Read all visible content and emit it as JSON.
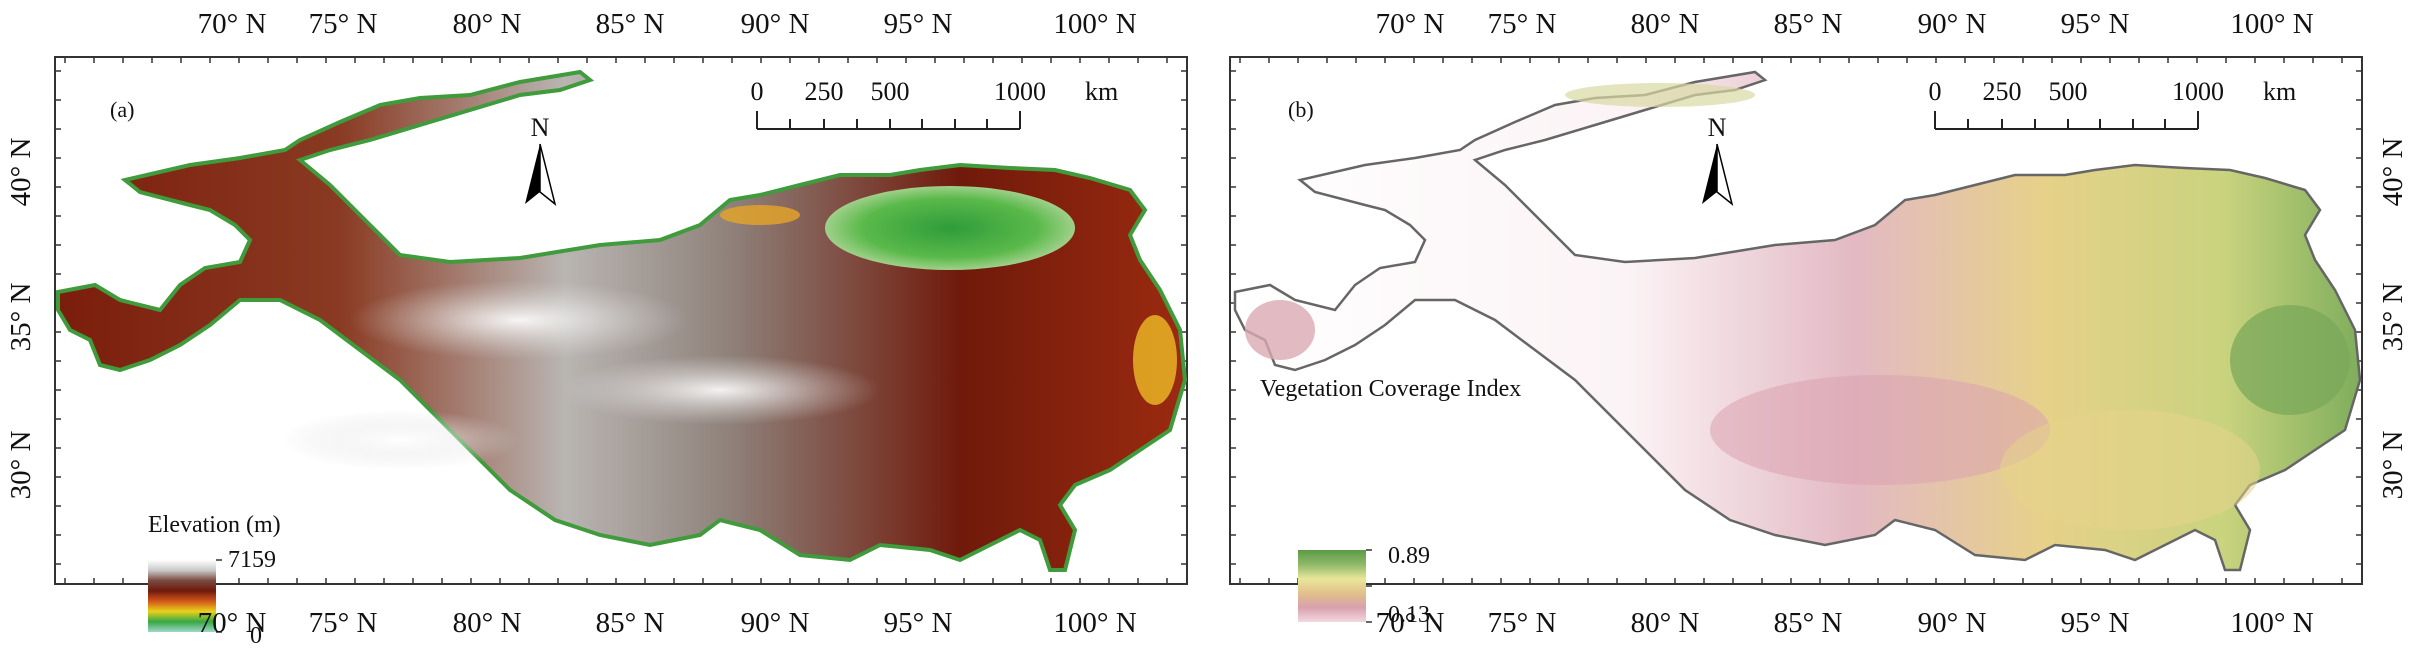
{
  "longitude_labels": [
    "70° N",
    "75° N",
    "80° N",
    "85° N",
    "90° N",
    "95° N",
    "100° N"
  ],
  "latitude_labels": [
    "40° N",
    "35° N",
    "30° N"
  ],
  "scale_bar": {
    "ticks": [
      "0",
      "250",
      "500",
      "1000"
    ],
    "unit": "km"
  },
  "north_arrow": {
    "label": "N",
    "icon": "north-arrow-icon"
  },
  "panels": [
    {
      "id": "a",
      "tag": "(a)",
      "legend": {
        "title": "Elevation (m)",
        "max_label": "7159",
        "min_label": "0",
        "colors": [
          "#9fd6c8",
          "#35a844",
          "#e8d21a",
          "#d2561a",
          "#6e1a0c",
          "#7a4a40",
          "#c9c9c9",
          "#ffffff"
        ]
      }
    },
    {
      "id": "b",
      "tag": "(b)",
      "legend": {
        "title": "Vegetation Coverage Index",
        "max_label": "0.89",
        "min_label": "0.13",
        "colors": [
          "#f3d9e1",
          "#d9a0ae",
          "#e2c08a",
          "#e8e79a",
          "#8fb869",
          "#5d9a45"
        ]
      }
    }
  ]
}
